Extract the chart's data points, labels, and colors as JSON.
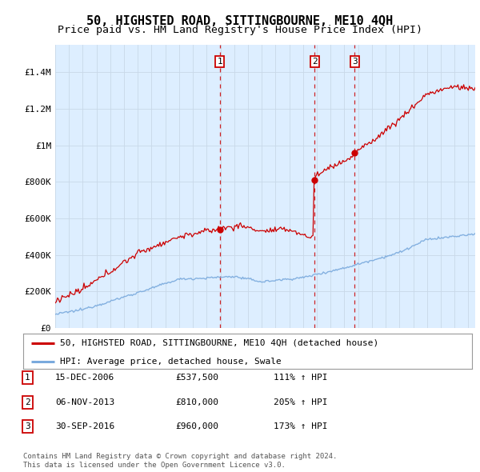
{
  "title": "50, HIGHSTED ROAD, SITTINGBOURNE, ME10 4QH",
  "subtitle": "Price paid vs. HM Land Registry's House Price Index (HPI)",
  "ylabel_ticks": [
    "£0",
    "£200K",
    "£400K",
    "£600K",
    "£800K",
    "£1M",
    "£1.2M",
    "£1.4M"
  ],
  "ytick_values": [
    0,
    200000,
    400000,
    600000,
    800000,
    1000000,
    1200000,
    1400000
  ],
  "ylim": [
    0,
    1550000
  ],
  "xlim_start": 1995.0,
  "xlim_end": 2025.5,
  "purchase_dates": [
    2006.96,
    2013.84,
    2016.75
  ],
  "purchase_prices": [
    537500,
    810000,
    960000
  ],
  "purchase_labels": [
    "1",
    "2",
    "3"
  ],
  "vline_color": "#cc0000",
  "red_line_color": "#cc0000",
  "blue_line_color": "#7aaadd",
  "legend_label_red": "50, HIGHSTED ROAD, SITTINGBOURNE, ME10 4QH (detached house)",
  "legend_label_blue": "HPI: Average price, detached house, Swale",
  "table_rows": [
    [
      "1",
      "15-DEC-2006",
      "£537,500",
      "111% ↑ HPI"
    ],
    [
      "2",
      "06-NOV-2013",
      "£810,000",
      "205% ↑ HPI"
    ],
    [
      "3",
      "30-SEP-2016",
      "£960,000",
      "173% ↑ HPI"
    ]
  ],
  "footnote1": "Contains HM Land Registry data © Crown copyright and database right 2024.",
  "footnote2": "This data is licensed under the Open Government Licence v3.0.",
  "background_color": "#ffffff",
  "plot_bg_color": "#ddeeff",
  "grid_color": "#c8d8e8",
  "title_fontsize": 11,
  "subtitle_fontsize": 9.5
}
